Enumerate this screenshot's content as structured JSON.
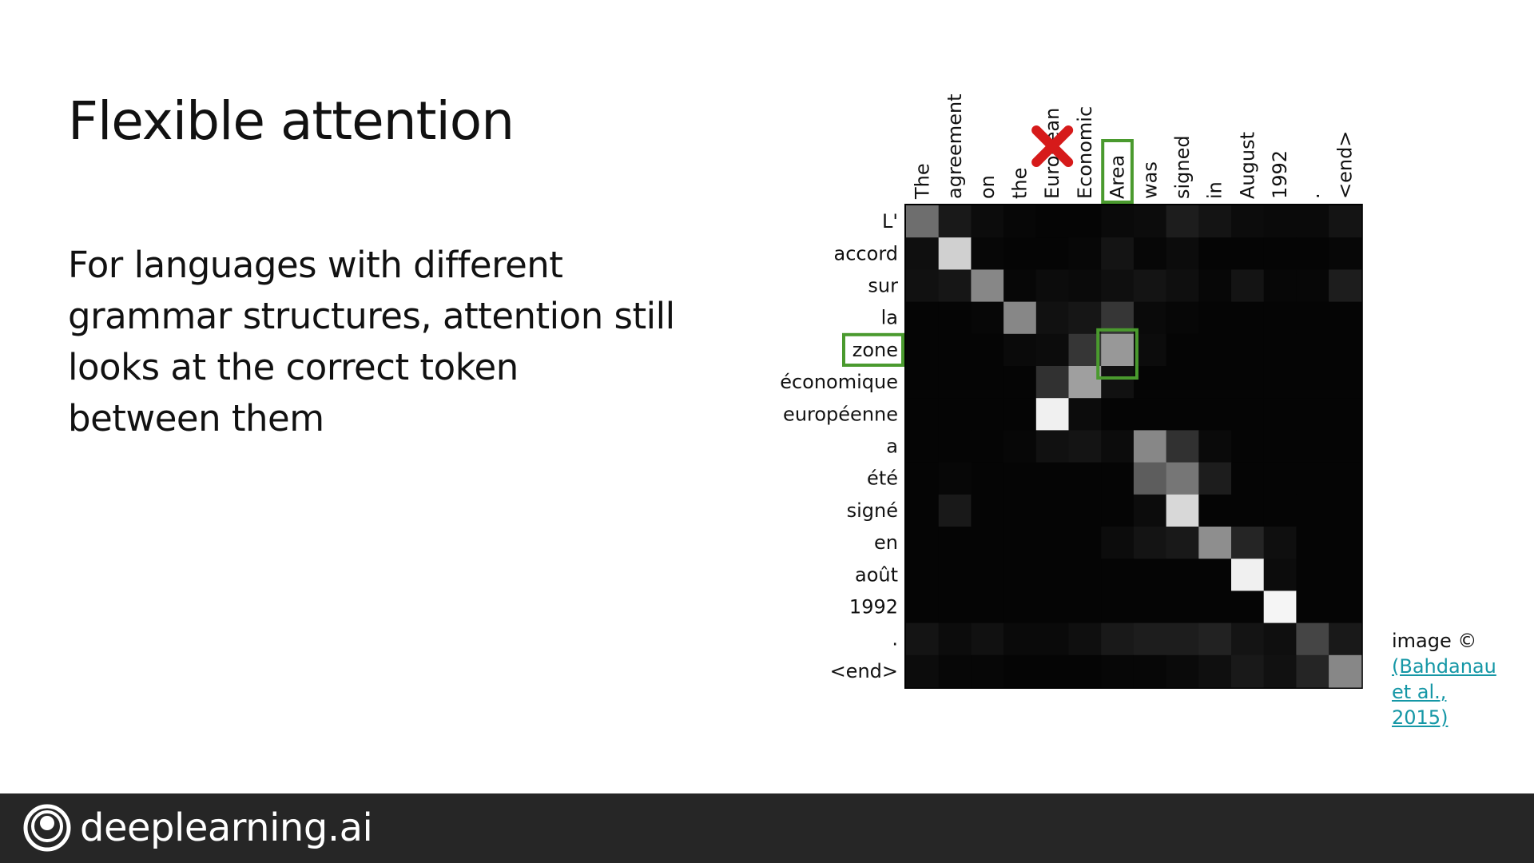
{
  "title": "Flexible attention",
  "body": "For languages with different grammar structures, attention still looks at the correct token between them",
  "chart_data": {
    "type": "heatmap",
    "x_tokens": [
      "The",
      "agreement",
      "on",
      "the",
      "European",
      "Economic",
      "Area",
      "was",
      "signed",
      "in",
      "August",
      "1992",
      ".",
      "<end>"
    ],
    "y_tokens": [
      "L'",
      "accord",
      "sur",
      "la",
      "zone",
      "économique",
      "européenne",
      "a",
      "été",
      "signé",
      "en",
      "août",
      "1992",
      ".",
      "<end>"
    ],
    "values": [
      [
        0.45,
        0.1,
        0.05,
        0.03,
        0.02,
        0.02,
        0.04,
        0.05,
        0.12,
        0.08,
        0.05,
        0.04,
        0.04,
        0.08
      ],
      [
        0.06,
        0.85,
        0.03,
        0.02,
        0.02,
        0.03,
        0.08,
        0.03,
        0.05,
        0.02,
        0.02,
        0.02,
        0.02,
        0.03
      ],
      [
        0.07,
        0.09,
        0.55,
        0.03,
        0.05,
        0.04,
        0.06,
        0.08,
        0.06,
        0.03,
        0.08,
        0.03,
        0.03,
        0.12
      ],
      [
        0.02,
        0.02,
        0.03,
        0.55,
        0.07,
        0.09,
        0.22,
        0.04,
        0.03,
        0.02,
        0.02,
        0.02,
        0.02,
        0.02
      ],
      [
        0.02,
        0.02,
        0.02,
        0.04,
        0.05,
        0.22,
        0.62,
        0.05,
        0.02,
        0.02,
        0.02,
        0.02,
        0.02,
        0.02
      ],
      [
        0.02,
        0.02,
        0.02,
        0.02,
        0.2,
        0.65,
        0.07,
        0.02,
        0.02,
        0.02,
        0.02,
        0.02,
        0.02,
        0.02
      ],
      [
        0.02,
        0.02,
        0.02,
        0.02,
        0.98,
        0.05,
        0.02,
        0.02,
        0.02,
        0.02,
        0.02,
        0.02,
        0.02,
        0.02
      ],
      [
        0.02,
        0.02,
        0.02,
        0.03,
        0.07,
        0.08,
        0.05,
        0.55,
        0.2,
        0.04,
        0.02,
        0.02,
        0.02,
        0.02
      ],
      [
        0.02,
        0.03,
        0.02,
        0.02,
        0.02,
        0.02,
        0.02,
        0.38,
        0.48,
        0.12,
        0.02,
        0.02,
        0.02,
        0.02
      ],
      [
        0.02,
        0.1,
        0.02,
        0.02,
        0.02,
        0.02,
        0.02,
        0.05,
        0.88,
        0.02,
        0.02,
        0.02,
        0.02,
        0.02
      ],
      [
        0.02,
        0.02,
        0.02,
        0.02,
        0.02,
        0.02,
        0.05,
        0.08,
        0.1,
        0.58,
        0.15,
        0.06,
        0.02,
        0.02
      ],
      [
        0.02,
        0.02,
        0.02,
        0.02,
        0.02,
        0.02,
        0.02,
        0.02,
        0.02,
        0.02,
        0.98,
        0.05,
        0.02,
        0.02
      ],
      [
        0.02,
        0.02,
        0.02,
        0.02,
        0.02,
        0.02,
        0.02,
        0.02,
        0.02,
        0.02,
        0.02,
        1.0,
        0.02,
        0.02
      ],
      [
        0.08,
        0.05,
        0.07,
        0.04,
        0.04,
        0.06,
        0.1,
        0.12,
        0.12,
        0.14,
        0.08,
        0.06,
        0.28,
        0.1
      ],
      [
        0.05,
        0.03,
        0.03,
        0.02,
        0.02,
        0.02,
        0.03,
        0.03,
        0.04,
        0.06,
        0.1,
        0.07,
        0.15,
        0.55
      ]
    ],
    "highlighted_cell": {
      "x": "Area",
      "y": "zone"
    },
    "highlighted_x_token": "Area",
    "highlighted_y_token": "zone",
    "crossed_x_token": "European",
    "highlight_color": "#4a9a2e",
    "cross_color": "#d61a1a"
  },
  "credit": {
    "prefix": "image ©",
    "link_text": "(Bahdanau et al., 2015)"
  },
  "footer": {
    "brand": "deeplearning.ai"
  },
  "colors": {
    "footer_bg": "#262626",
    "link": "#1597a6"
  }
}
